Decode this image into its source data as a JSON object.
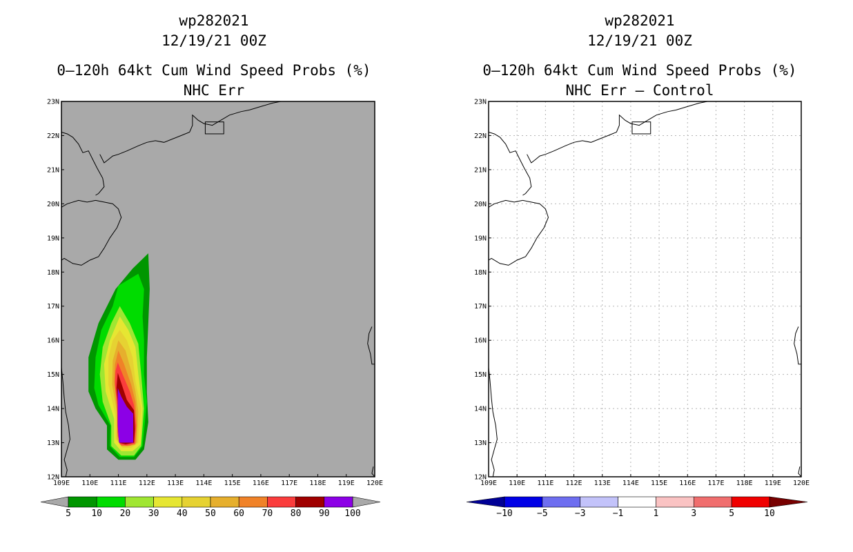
{
  "chart_data": [
    {
      "type": "map",
      "storm_id": "wp282021",
      "datetime": "12/19/21 00Z",
      "title": "0–120h 64kt Cum Wind Speed Probs (%)",
      "subtitle": "NHC Err",
      "lon_range": [
        109,
        120
      ],
      "lat_range": [
        12,
        23
      ],
      "x_tick_labels": [
        "109E",
        "110E",
        "111E",
        "112E",
        "113E",
        "114E",
        "115E",
        "116E",
        "117E",
        "118E",
        "119E",
        "120E"
      ],
      "y_tick_labels": [
        "12N",
        "13N",
        "14N",
        "15N",
        "16N",
        "17N",
        "18N",
        "19N",
        "20N",
        "21N",
        "22N",
        "23N"
      ],
      "background_color": "#a9a9a9",
      "colorbar": {
        "labels": [
          "5",
          "10",
          "20",
          "30",
          "40",
          "50",
          "60",
          "70",
          "80",
          "90",
          "100"
        ],
        "colors": [
          "#009600",
          "#00dc00",
          "#a0e632",
          "#e6e632",
          "#e6d232",
          "#e6af2d",
          "#f08228",
          "#fa3c3c",
          "#a00000",
          "#8c00e6"
        ],
        "under_color": "#a9a9a9",
        "over_color": "#a9a9a9"
      },
      "contours": [
        {
          "level": 5,
          "color": "#009600",
          "points": [
            [
              112.05,
              18.55
            ],
            [
              112.1,
              17.5
            ],
            [
              112.05,
              16.5
            ],
            [
              112.0,
              15.5
            ],
            [
              112.0,
              14.5
            ],
            [
              112.05,
              13.6
            ],
            [
              111.9,
              12.8
            ],
            [
              111.6,
              12.5
            ],
            [
              111.0,
              12.5
            ],
            [
              110.6,
              12.8
            ],
            [
              110.6,
              13.5
            ],
            [
              110.2,
              14.0
            ],
            [
              109.95,
              14.5
            ],
            [
              109.95,
              15.5
            ],
            [
              110.3,
              16.5
            ],
            [
              110.9,
              17.5
            ],
            [
              111.5,
              18.1
            ]
          ]
        },
        {
          "level": 10,
          "color": "#00dc00",
          "points": [
            [
              111.7,
              17.95
            ],
            [
              111.9,
              17.5
            ],
            [
              111.85,
              16.7
            ],
            [
              111.9,
              16.0
            ],
            [
              111.9,
              15.0
            ],
            [
              112.0,
              14.2
            ],
            [
              111.85,
              12.9
            ],
            [
              111.55,
              12.58
            ],
            [
              111.05,
              12.58
            ],
            [
              110.7,
              12.9
            ],
            [
              110.72,
              13.5
            ],
            [
              110.3,
              14.1
            ],
            [
              110.15,
              14.6
            ],
            [
              110.2,
              15.5
            ],
            [
              110.4,
              16.3
            ],
            [
              110.8,
              17.0
            ],
            [
              111.0,
              17.6
            ]
          ]
        },
        {
          "level": 20,
          "color": "#a0e632",
          "points": [
            [
              111.05,
              17.0
            ],
            [
              111.4,
              16.5
            ],
            [
              111.7,
              15.9
            ],
            [
              111.8,
              15.0
            ],
            [
              111.9,
              14.0
            ],
            [
              111.8,
              12.9
            ],
            [
              111.55,
              12.62
            ],
            [
              111.1,
              12.62
            ],
            [
              110.75,
              12.9
            ],
            [
              110.75,
              13.5
            ],
            [
              110.45,
              14.2
            ],
            [
              110.35,
              15.0
            ],
            [
              110.45,
              15.8
            ],
            [
              110.75,
              16.5
            ]
          ]
        },
        {
          "level": 30,
          "color": "#e6e632",
          "points": [
            [
              111.05,
              16.7
            ],
            [
              111.35,
              16.3
            ],
            [
              111.6,
              15.8
            ],
            [
              111.7,
              15.0
            ],
            [
              111.85,
              14.0
            ],
            [
              111.78,
              12.95
            ],
            [
              111.5,
              12.75
            ],
            [
              111.1,
              12.75
            ],
            [
              110.85,
              13.0
            ],
            [
              110.85,
              13.7
            ],
            [
              110.55,
              14.5
            ],
            [
              110.5,
              15.3
            ],
            [
              110.7,
              16.0
            ]
          ]
        },
        {
          "level": 40,
          "color": "#e6d232",
          "points": [
            [
              111.05,
              16.3
            ],
            [
              111.3,
              16.0
            ],
            [
              111.5,
              15.5
            ],
            [
              111.6,
              14.8
            ],
            [
              111.8,
              14.0
            ],
            [
              111.7,
              13.0
            ],
            [
              111.45,
              12.85
            ],
            [
              111.15,
              12.85
            ],
            [
              110.9,
              13.1
            ],
            [
              110.9,
              13.8
            ],
            [
              110.65,
              14.7
            ],
            [
              110.65,
              15.5
            ],
            [
              110.8,
              16.0
            ]
          ]
        },
        {
          "level": 50,
          "color": "#e6af2d",
          "points": [
            [
              111.0,
              16.0
            ],
            [
              111.25,
              15.7
            ],
            [
              111.45,
              15.1
            ],
            [
              111.6,
              14.5
            ],
            [
              111.7,
              13.9
            ],
            [
              111.65,
              13.0
            ],
            [
              111.4,
              12.9
            ],
            [
              111.15,
              12.9
            ],
            [
              110.95,
              13.1
            ],
            [
              110.95,
              13.9
            ],
            [
              110.78,
              14.7
            ],
            [
              110.8,
              15.4
            ]
          ]
        },
        {
          "level": 60,
          "color": "#f08228",
          "points": [
            [
              111.0,
              15.7
            ],
            [
              111.2,
              15.3
            ],
            [
              111.45,
              14.7
            ],
            [
              111.6,
              14.2
            ],
            [
              111.65,
              13.5
            ],
            [
              111.6,
              12.95
            ],
            [
              111.35,
              12.9
            ],
            [
              111.1,
              12.9
            ],
            [
              110.97,
              13.2
            ],
            [
              110.97,
              14.0
            ],
            [
              110.85,
              14.8
            ],
            [
              110.88,
              15.3
            ]
          ]
        },
        {
          "level": 70,
          "color": "#fa3c3c",
          "points": [
            [
              110.98,
              15.35
            ],
            [
              111.15,
              15.0
            ],
            [
              111.4,
              14.5
            ],
            [
              111.55,
              14.1
            ],
            [
              111.62,
              13.5
            ],
            [
              111.57,
              12.98
            ],
            [
              111.3,
              12.92
            ],
            [
              111.05,
              12.95
            ],
            [
              110.97,
              13.3
            ],
            [
              110.95,
              14.1
            ],
            [
              110.88,
              14.7
            ],
            [
              110.9,
              15.1
            ]
          ]
        },
        {
          "level": 80,
          "color": "#a00000",
          "points": [
            [
              110.98,
              15.05
            ],
            [
              111.12,
              14.7
            ],
            [
              111.3,
              14.25
            ],
            [
              111.55,
              13.95
            ],
            [
              111.58,
              13.4
            ],
            [
              111.55,
              13.0
            ],
            [
              111.25,
              12.95
            ],
            [
              111.02,
              13.0
            ],
            [
              110.98,
              13.5
            ],
            [
              110.98,
              14.2
            ],
            [
              110.93,
              14.6
            ]
          ]
        },
        {
          "level": 90,
          "color": "#8c00e6",
          "points": [
            [
              110.98,
              14.6
            ],
            [
              111.1,
              14.35
            ],
            [
              111.3,
              14.05
            ],
            [
              111.52,
              13.85
            ],
            [
              111.52,
              13.0
            ],
            [
              111.02,
              13.0
            ],
            [
              110.98,
              13.5
            ]
          ]
        }
      ],
      "control_box": {
        "lon": [
          114.05,
          114.7
        ],
        "lat": [
          22.05,
          22.4
        ]
      }
    },
    {
      "type": "map",
      "storm_id": "wp282021",
      "datetime": "12/19/21 00Z",
      "title": "0–120h 64kt Cum Wind Speed Probs (%)",
      "subtitle": "NHC Err – Control",
      "lon_range": [
        109,
        120
      ],
      "lat_range": [
        12,
        23
      ],
      "x_tick_labels": [
        "109E",
        "110E",
        "111E",
        "112E",
        "113E",
        "114E",
        "115E",
        "116E",
        "117E",
        "118E",
        "119E",
        "120E"
      ],
      "y_tick_labels": [
        "12N",
        "13N",
        "14N",
        "15N",
        "16N",
        "17N",
        "18N",
        "19N",
        "20N",
        "21N",
        "22N",
        "23N"
      ],
      "background_color": "#ffffff",
      "grid": true,
      "colorbar": {
        "labels": [
          "−10",
          "−5",
          "−3",
          "−1",
          "1",
          "3",
          "5",
          "10"
        ],
        "colors": [
          "#0000e6",
          "#6e6ef0",
          "#c3c3fa",
          "#ffffff",
          "#fac3c3",
          "#f06e6e",
          "#f00000"
        ],
        "under_color": "#000096",
        "over_color": "#780000"
      },
      "contours": [],
      "control_box": {
        "lon": [
          114.05,
          114.7
        ],
        "lat": [
          22.05,
          22.4
        ]
      }
    }
  ]
}
